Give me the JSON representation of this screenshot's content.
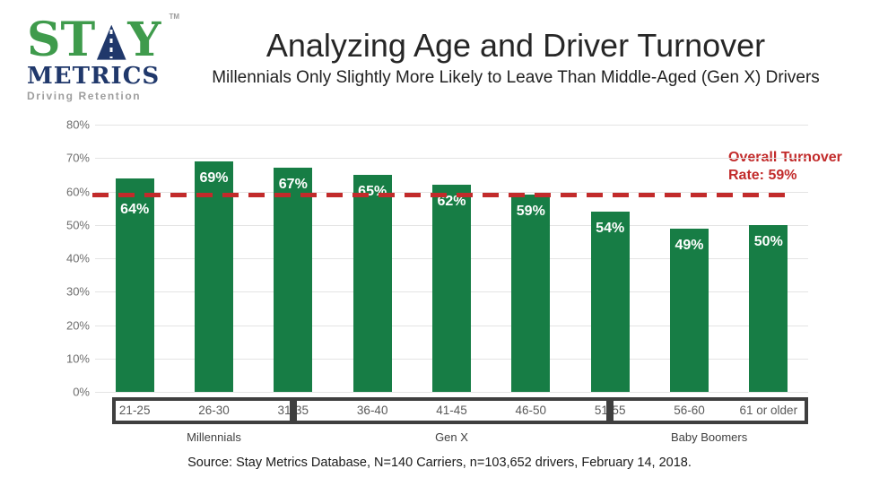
{
  "logo": {
    "stay_prefix": "ST",
    "stay_suffix": "Y",
    "trademark": "TM",
    "metrics": "METRICS",
    "tagline": "Driving Retention",
    "green": "#3f9b4c",
    "navy": "#20386b",
    "gray": "#9e9e9e"
  },
  "header": {
    "title": "Analyzing Age and Driver Turnover",
    "subtitle": "Millennials Only Slightly More Likely to Leave Than Middle-Aged (Gen X) Drivers"
  },
  "chart_data": {
    "type": "bar",
    "title": "Analyzing Age and Driver Turnover",
    "categories": [
      "21-25",
      "26-30",
      "31-35",
      "36-40",
      "41-45",
      "46-50",
      "51-55",
      "56-60",
      "61 or older"
    ],
    "values": [
      64,
      69,
      67,
      65,
      62,
      59,
      54,
      49,
      50
    ],
    "value_labels": [
      "64%",
      "69%",
      "67%",
      "65%",
      "62%",
      "59%",
      "54%",
      "49%",
      "50%"
    ],
    "xlabel": "",
    "ylabel": "",
    "ylim": [
      0,
      80
    ],
    "y_ticks": [
      "0%",
      "10%",
      "20%",
      "30%",
      "40%",
      "50%",
      "60%",
      "70%",
      "80%"
    ],
    "grid": true,
    "legend": "none",
    "bar_color": "#177d45",
    "gridline_color": "#e4e4e4",
    "axis_text_color": "#6e6e6e",
    "reference_line": {
      "value": 59,
      "label": "Overall Turnover Rate: 59%",
      "color": "#c22b2b",
      "style": "dashed"
    },
    "groups": [
      {
        "label": "Millennials",
        "start": 0,
        "end": 2
      },
      {
        "label": "Gen X",
        "start": 2,
        "end": 6
      },
      {
        "label": "Baby Boomers",
        "start": 6,
        "end": 8
      }
    ]
  },
  "footer": {
    "source": "Source: Stay Metrics Database, N=140 Carriers, n=103,652 drivers, February 14, 2018."
  }
}
